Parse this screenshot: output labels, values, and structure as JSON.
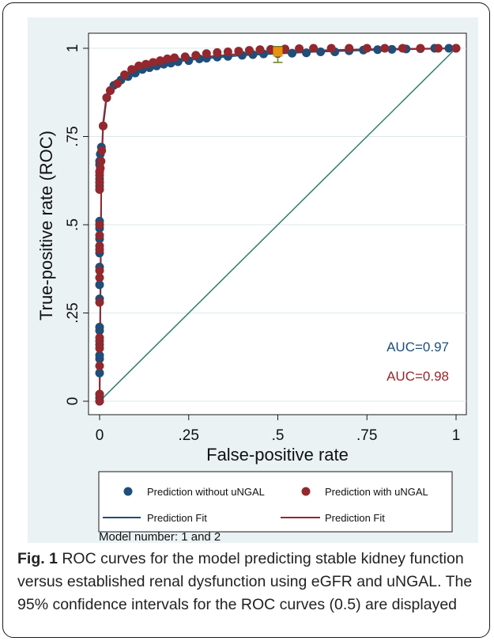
{
  "caption": {
    "label": "Fig. 1",
    "text": " ROC curves for the model predicting stable kidney function versus established renal dysfunction using eGFR and uNGAL. The 95% confidence intervals for the ROC curves (0.5) are displayed"
  },
  "chart_data": {
    "type": "scatter",
    "xlabel": "False-positive rate",
    "ylabel": "True-positive rate (ROC)",
    "xlim": [
      0,
      1
    ],
    "ylim": [
      0,
      1
    ],
    "x_ticks": [
      0,
      0.25,
      0.5,
      0.75,
      1
    ],
    "x_tick_labels": [
      "0",
      ".25",
      ".5",
      ".75",
      "1"
    ],
    "y_ticks": [
      0,
      0.25,
      0.5,
      0.75,
      1
    ],
    "y_tick_labels": [
      "0",
      ".25",
      ".5",
      ".75",
      "1"
    ],
    "grid": "horizontal",
    "colors": {
      "plot_background": "#eaf2f3",
      "series1": "#1f4e79",
      "series2": "#93282e",
      "reference_line": "#2e7d6e",
      "ci_marker": "#e8930c",
      "ci_bar": "#6b7d1f"
    },
    "series": [
      {
        "name": "Prediction without uNGAL",
        "marker": "circle",
        "points": [
          [
            0,
            0
          ],
          [
            0,
            0.01
          ],
          [
            0,
            0.02
          ],
          [
            0,
            0.08
          ],
          [
            0,
            0.12
          ],
          [
            0,
            0.13
          ],
          [
            0,
            0.16
          ],
          [
            0,
            0.2
          ],
          [
            0,
            0.21
          ],
          [
            0,
            0.29
          ],
          [
            0,
            0.33
          ],
          [
            0,
            0.38
          ],
          [
            0,
            0.42
          ],
          [
            0,
            0.46
          ],
          [
            0,
            0.49
          ],
          [
            0,
            0.5
          ],
          [
            0,
            0.51
          ],
          [
            0,
            0.6
          ],
          [
            0,
            0.61
          ],
          [
            0,
            0.62
          ],
          [
            0,
            0.63
          ],
          [
            0,
            0.65
          ],
          [
            0,
            0.67
          ],
          [
            0,
            0.68
          ],
          [
            0.002,
            0.7
          ],
          [
            0.005,
            0.72
          ],
          [
            0.01,
            0.78
          ],
          [
            0.02,
            0.86
          ],
          [
            0.03,
            0.88
          ],
          [
            0.04,
            0.895
          ],
          [
            0.06,
            0.91
          ],
          [
            0.08,
            0.92
          ],
          [
            0.1,
            0.93
          ],
          [
            0.12,
            0.94
          ],
          [
            0.14,
            0.945
          ],
          [
            0.16,
            0.95
          ],
          [
            0.18,
            0.955
          ],
          [
            0.2,
            0.958
          ],
          [
            0.22,
            0.962
          ],
          [
            0.25,
            0.965
          ],
          [
            0.28,
            0.97
          ],
          [
            0.3,
            0.972
          ],
          [
            0.33,
            0.975
          ],
          [
            0.36,
            0.977
          ],
          [
            0.4,
            0.98
          ],
          [
            0.43,
            0.982
          ],
          [
            0.46,
            0.984
          ],
          [
            0.5,
            0.985
          ],
          [
            0.54,
            0.986
          ],
          [
            0.58,
            0.987
          ],
          [
            0.62,
            0.99
          ],
          [
            0.66,
            0.99
          ],
          [
            0.7,
            0.993
          ],
          [
            0.74,
            0.995
          ],
          [
            0.78,
            0.996
          ],
          [
            0.82,
            0.997
          ],
          [
            0.86,
            0.998
          ],
          [
            0.9,
            0.999
          ],
          [
            0.94,
            1
          ],
          [
            0.98,
            1
          ],
          [
            1,
            1
          ]
        ]
      },
      {
        "name": "Prediction with uNGAL",
        "marker": "circle",
        "points": [
          [
            0,
            0
          ],
          [
            0,
            0.02
          ],
          [
            0,
            0.1
          ],
          [
            0,
            0.15
          ],
          [
            0,
            0.17
          ],
          [
            0,
            0.18
          ],
          [
            0,
            0.28
          ],
          [
            0,
            0.35
          ],
          [
            0,
            0.37
          ],
          [
            0,
            0.43
          ],
          [
            0,
            0.44
          ],
          [
            0,
            0.47
          ],
          [
            0,
            0.5
          ],
          [
            0,
            0.6
          ],
          [
            0,
            0.62
          ],
          [
            0,
            0.64
          ],
          [
            0,
            0.65
          ],
          [
            0.002,
            0.66
          ],
          [
            0.004,
            0.68
          ],
          [
            0.006,
            0.71
          ],
          [
            0.01,
            0.78
          ],
          [
            0.02,
            0.86
          ],
          [
            0.03,
            0.88
          ],
          [
            0.05,
            0.9
          ],
          [
            0.07,
            0.925
          ],
          [
            0.09,
            0.94
          ],
          [
            0.11,
            0.95
          ],
          [
            0.13,
            0.955
          ],
          [
            0.15,
            0.96
          ],
          [
            0.17,
            0.965
          ],
          [
            0.19,
            0.97
          ],
          [
            0.21,
            0.973
          ],
          [
            0.24,
            0.976
          ],
          [
            0.27,
            0.98
          ],
          [
            0.3,
            0.985
          ],
          [
            0.33,
            0.988
          ],
          [
            0.36,
            0.99
          ],
          [
            0.39,
            0.992
          ],
          [
            0.42,
            0.994
          ],
          [
            0.45,
            0.996
          ],
          [
            0.48,
            0.997
          ],
          [
            0.52,
            0.998
          ],
          [
            0.56,
            0.999
          ],
          [
            0.6,
            1
          ],
          [
            0.65,
            1
          ],
          [
            0.7,
            1
          ],
          [
            0.75,
            1
          ],
          [
            0.8,
            1
          ],
          [
            0.85,
            1
          ],
          [
            0.9,
            1
          ],
          [
            0.95,
            1
          ],
          [
            1,
            1
          ]
        ]
      }
    ],
    "fit_lines": [
      {
        "name": "Prediction Fit",
        "series": "Prediction without uNGAL",
        "points": [
          [
            0,
            0
          ],
          [
            0.005,
            0.65
          ],
          [
            0.01,
            0.78
          ],
          [
            0.02,
            0.86
          ],
          [
            0.04,
            0.9
          ],
          [
            0.08,
            0.925
          ],
          [
            0.15,
            0.95
          ],
          [
            0.25,
            0.967
          ],
          [
            0.4,
            0.98
          ],
          [
            0.6,
            0.99
          ],
          [
            0.8,
            0.996
          ],
          [
            1,
            1
          ]
        ]
      },
      {
        "name": "Prediction Fit",
        "series": "Prediction with uNGAL",
        "points": [
          [
            0,
            0
          ],
          [
            0.005,
            0.67
          ],
          [
            0.01,
            0.79
          ],
          [
            0.02,
            0.87
          ],
          [
            0.04,
            0.905
          ],
          [
            0.08,
            0.93
          ],
          [
            0.15,
            0.955
          ],
          [
            0.25,
            0.972
          ],
          [
            0.4,
            0.985
          ],
          [
            0.6,
            0.994
          ],
          [
            0.8,
            0.998
          ],
          [
            1,
            1
          ]
        ]
      }
    ],
    "reference_line": [
      [
        0,
        0
      ],
      [
        1,
        1
      ]
    ],
    "confidence_interval": {
      "x": 0.5,
      "y": 0.99,
      "low": 0.96,
      "high": 1.005
    },
    "annotations": [
      {
        "text": "AUC=0.97",
        "series": "Prediction without uNGAL"
      },
      {
        "text": "AUC=0.98",
        "series": "Prediction with uNGAL"
      }
    ],
    "legend": {
      "placement": "bottom",
      "entries": [
        {
          "label": "Prediction without uNGAL",
          "kind": "marker",
          "series": "Prediction without uNGAL"
        },
        {
          "label": "Prediction with uNGAL",
          "kind": "marker",
          "series": "Prediction with uNGAL"
        },
        {
          "label": "Prediction Fit",
          "kind": "line",
          "series": "Prediction without uNGAL"
        },
        {
          "label": "Prediction Fit",
          "kind": "line",
          "series": "Prediction with uNGAL"
        }
      ]
    },
    "note": "Model number: 1 and 2"
  }
}
